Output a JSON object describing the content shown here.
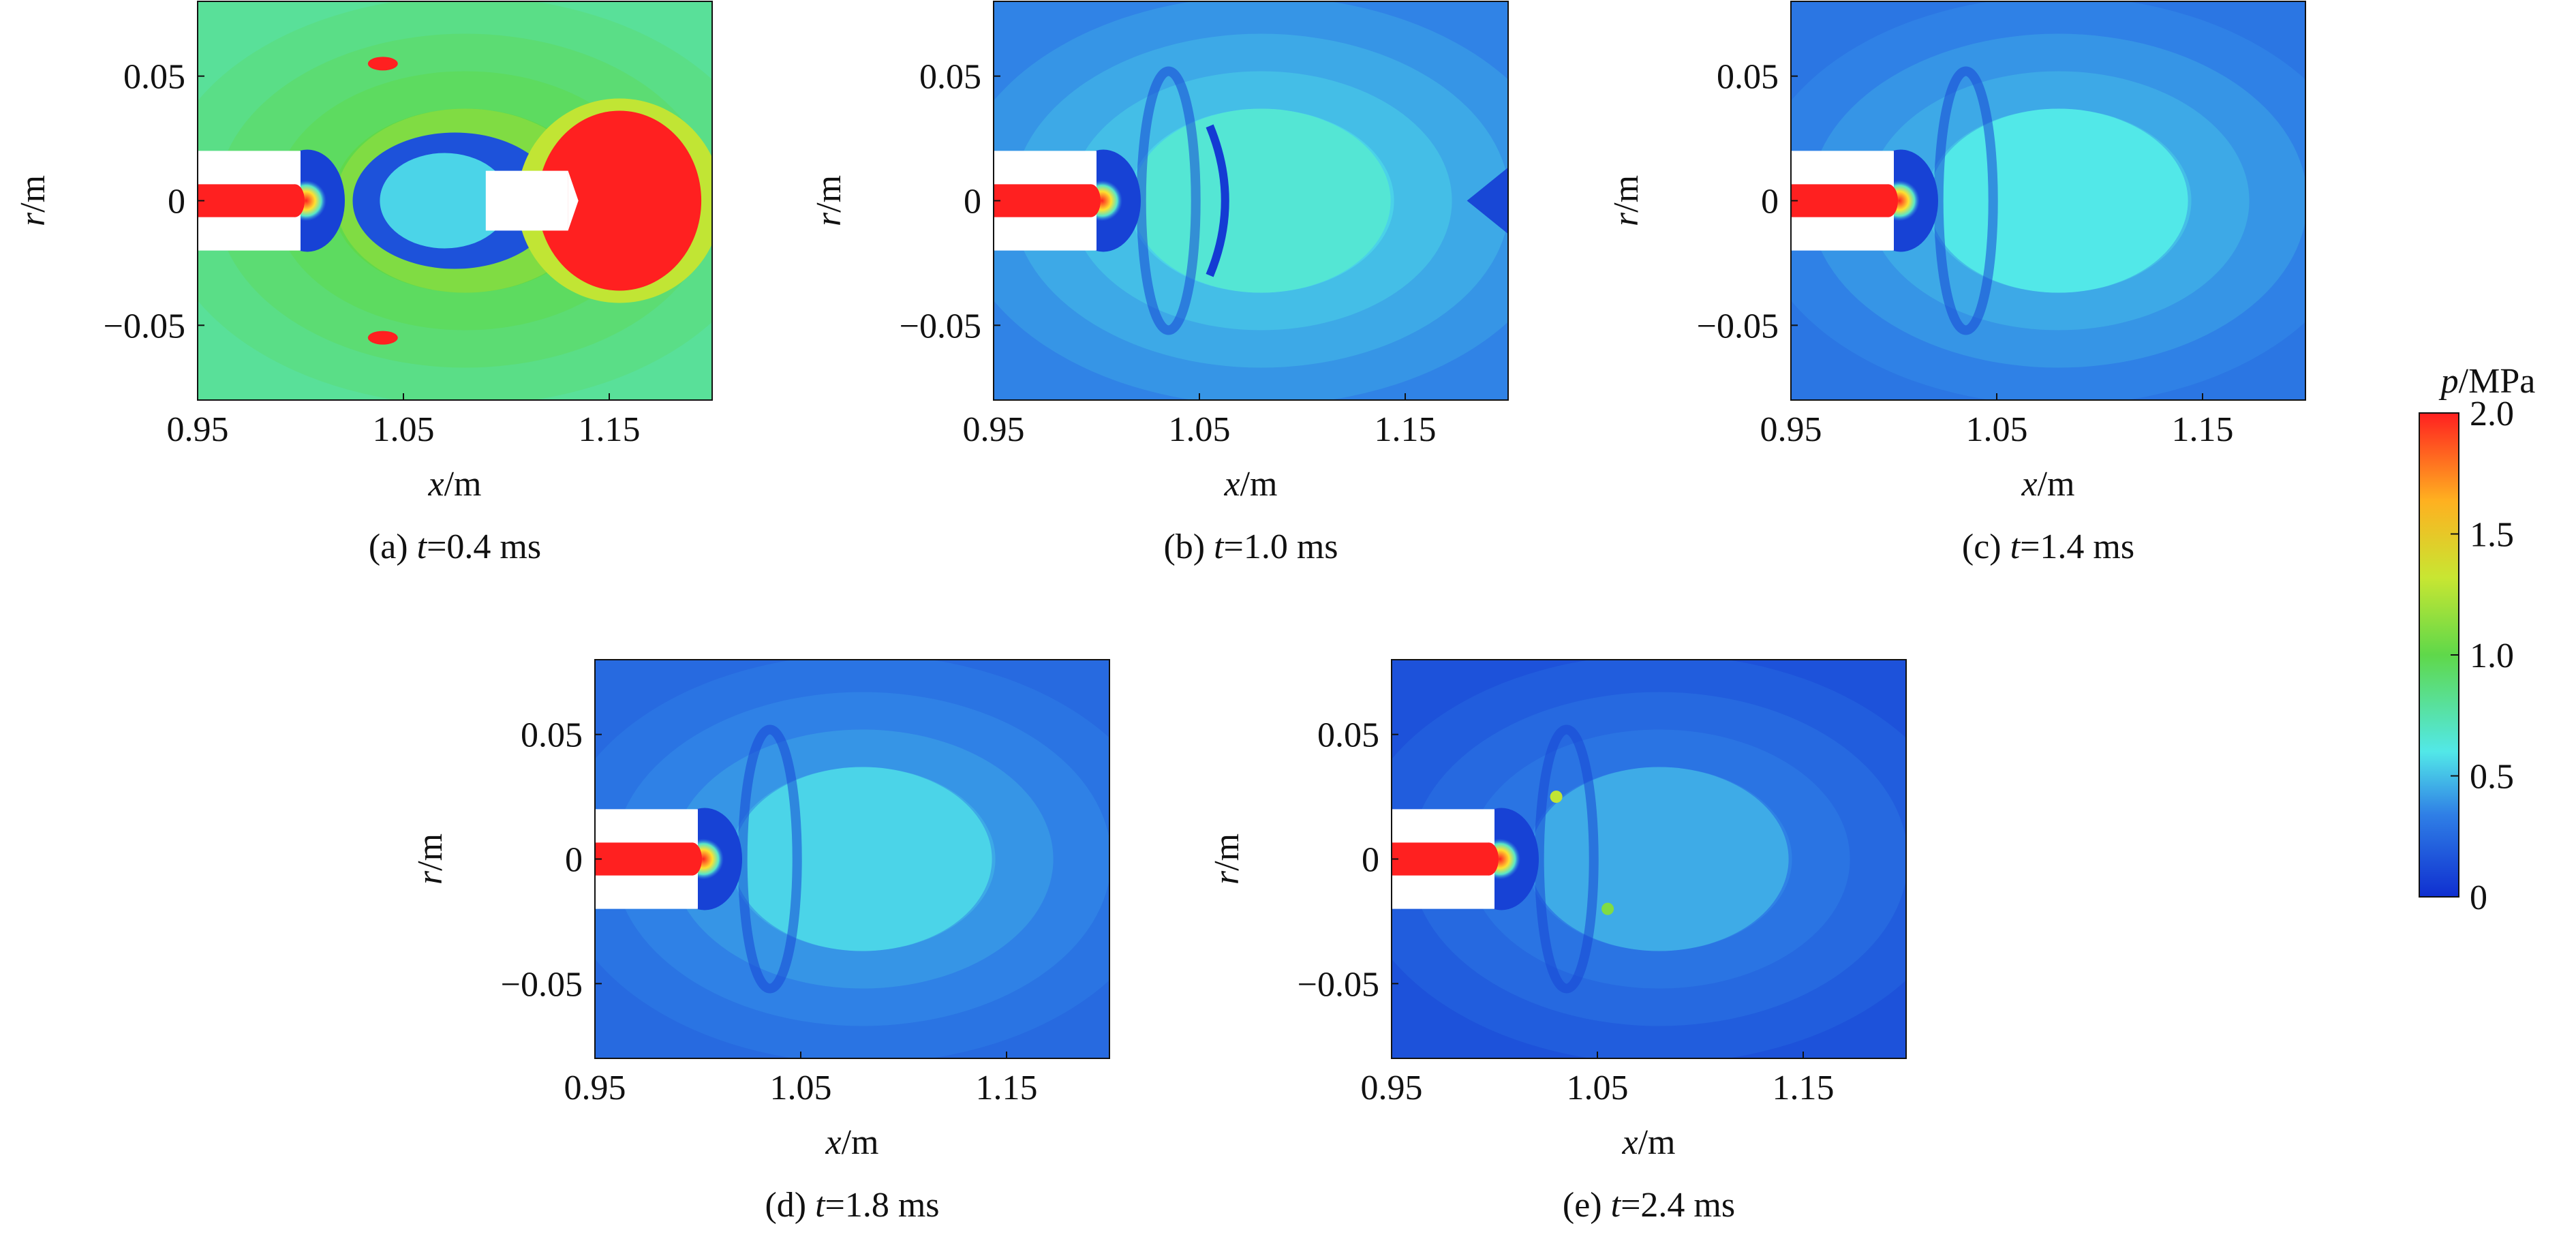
{
  "chart_data": {
    "type": "heatmap",
    "colorbar": {
      "label_var": "p",
      "label_unit": "/MPa",
      "ticks": [
        "0",
        "0.5",
        "1.0",
        "1.5",
        "2.0"
      ],
      "tick_values": [
        0,
        0.5,
        1.0,
        1.5,
        2.0
      ],
      "range": [
        0,
        2.0
      ],
      "colors": [
        "#0f2fd0",
        "#2f7fe6",
        "#52e8e8",
        "#5fd84a",
        "#c8e632",
        "#ffb020",
        "#ff2020"
      ]
    },
    "shared_axes": {
      "x_var": "x",
      "x_unit": "/m",
      "y_var": "r",
      "y_unit": "/m",
      "xlim": [
        0.95,
        1.2
      ],
      "ylim": [
        -0.08,
        0.08
      ],
      "xticks": [
        0.95,
        1.05,
        1.15
      ],
      "xtick_labels": [
        "0.95",
        "1.05",
        "1.15"
      ],
      "yticks": [
        0.05,
        0,
        -0.05
      ],
      "ytick_labels": [
        "0.05",
        "0",
        "−0.05"
      ]
    },
    "panels": [
      {
        "id": "a",
        "caption_prefix": "(a) ",
        "caption_var": "t",
        "caption_value": "=0.4 ms",
        "time_ms": 0.4,
        "background_level": 0.8
      },
      {
        "id": "b",
        "caption_prefix": "(b) ",
        "caption_var": "t",
        "caption_value": "=1.0 ms",
        "time_ms": 1.0,
        "background_level": 0.35
      },
      {
        "id": "c",
        "caption_prefix": "(c) ",
        "caption_var": "t",
        "caption_value": "=1.4 ms",
        "time_ms": 1.4,
        "background_level": 0.3
      },
      {
        "id": "d",
        "caption_prefix": "(d) ",
        "caption_var": "t",
        "caption_value": "=1.8 ms",
        "time_ms": 1.8,
        "background_level": 0.25
      },
      {
        "id": "e",
        "caption_prefix": "(e) ",
        "caption_var": "t",
        "caption_value": "=2.4 ms",
        "time_ms": 2.4,
        "background_level": 0.15
      }
    ]
  }
}
